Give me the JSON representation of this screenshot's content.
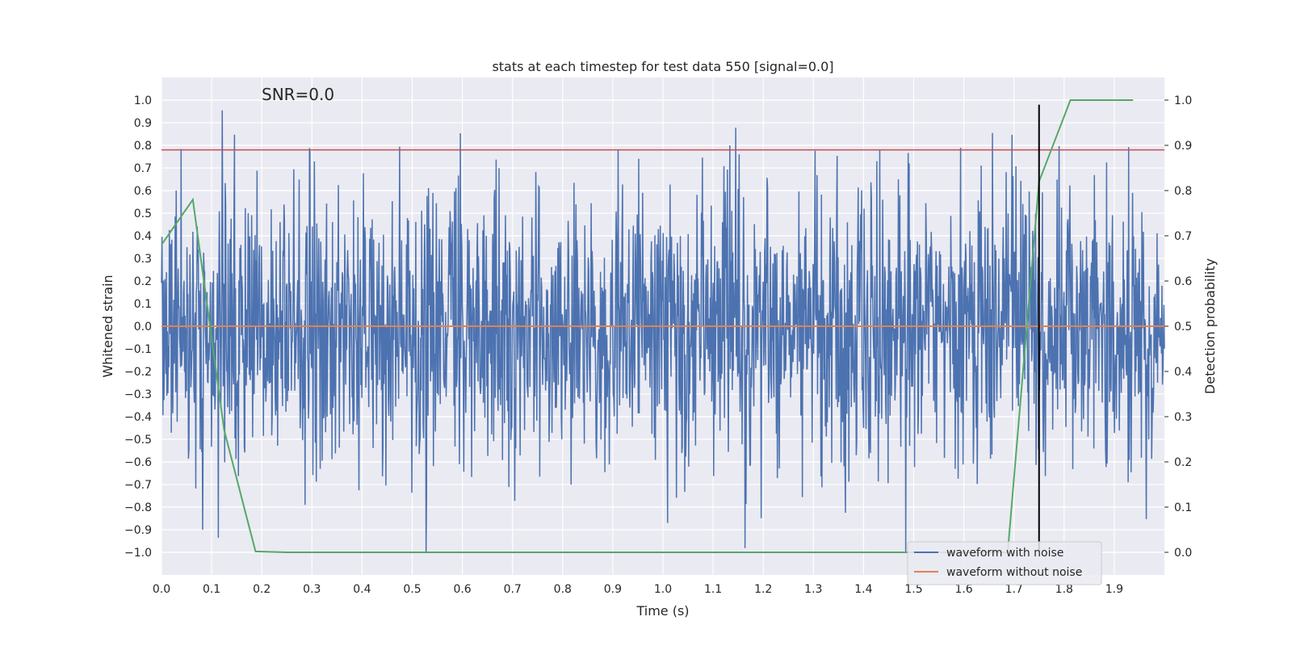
{
  "chart_data": {
    "type": "line",
    "title": "stats at each timestep for test data 550 [signal=0.0]",
    "xlabel": "Time (s)",
    "ylabel": "Whitened strain",
    "y2label": "Detection probability",
    "annotation": "SNR=0.0",
    "xlim": [
      0.0,
      2.0
    ],
    "ylim": [
      -1.1,
      1.1
    ],
    "y2lim": [
      -0.05,
      1.05
    ],
    "grid": true,
    "legend_position": "lower-right",
    "x_ticks": [
      "0.0",
      "0.1",
      "0.2",
      "0.3",
      "0.4",
      "0.5",
      "0.6",
      "0.7",
      "0.8",
      "0.9",
      "1.0",
      "1.1",
      "1.2",
      "1.3",
      "1.4",
      "1.5",
      "1.6",
      "1.7",
      "1.8",
      "1.9"
    ],
    "y_ticks": [
      "1.0",
      "0.9",
      "0.8",
      "0.7",
      "0.6",
      "0.5",
      "0.4",
      "0.3",
      "0.2",
      "0.1",
      "0.0",
      "−0.1",
      "−0.2",
      "−0.3",
      "−0.4",
      "−0.5",
      "−0.6",
      "−0.7",
      "−0.8",
      "−0.9",
      "−1.0"
    ],
    "y2_ticks": [
      "1.0",
      "0.9",
      "0.8",
      "0.7",
      "0.6",
      "0.5",
      "0.4",
      "0.3",
      "0.2",
      "0.1",
      "0.0"
    ],
    "series": [
      {
        "name": "waveform with noise",
        "axis": "left",
        "color": "#4c72b0",
        "note": "dense whitened noise, 2048 samples, roughly in [-0.95, 0.98]",
        "peak_max": 0.97,
        "peak_min": -1.0
      },
      {
        "name": "waveform without noise",
        "axis": "left",
        "color": "#dd8452",
        "x": [
          0.0,
          2.0
        ],
        "y": [
          0.0,
          0.0
        ]
      },
      {
        "name": "detection probability",
        "axis": "right",
        "color": "#55a868",
        "x": [
          0.0,
          0.0625,
          0.125,
          0.1875,
          0.25,
          0.3125,
          0.375,
          0.4375,
          0.5,
          0.5625,
          0.625,
          0.6875,
          0.75,
          0.8125,
          0.875,
          0.9375,
          1.0,
          1.0625,
          1.125,
          1.1875,
          1.25,
          1.3125,
          1.375,
          1.4375,
          1.5,
          1.5625,
          1.625,
          1.6875,
          1.75,
          1.8125,
          1.875,
          1.9375
        ],
        "y": [
          0.68,
          0.78,
          0.27,
          0.002,
          0.0,
          0.0,
          0.0,
          0.0,
          0.0,
          0.0,
          0.0,
          0.0,
          0.0,
          0.0,
          0.0,
          0.0,
          0.0,
          0.0,
          0.0,
          0.0,
          0.0,
          0.0,
          0.0,
          0.0,
          0.0,
          0.0,
          0.0,
          0.0,
          0.82,
          1.0,
          1.0,
          1.0
        ]
      }
    ],
    "hlines": [
      {
        "name": "threshold",
        "axis": "left",
        "y": 0.78,
        "color": "#c44e52"
      }
    ],
    "vlines": [
      {
        "name": "event-marker",
        "x": 1.75,
        "y_range": [
          -1.0,
          0.98
        ],
        "color": "#000000"
      }
    ]
  }
}
